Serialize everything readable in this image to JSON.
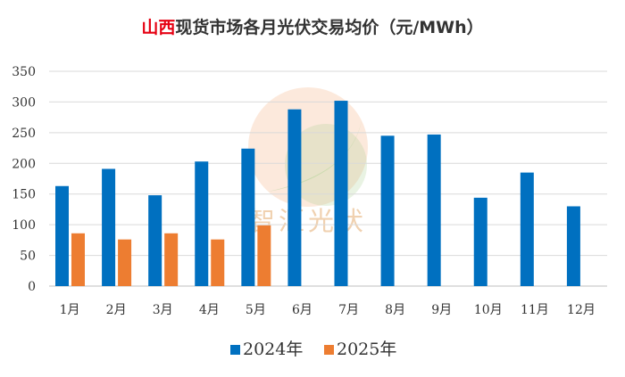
{
  "title_highlight": "山西",
  "title_rest": "现货市场各月光伏交易均价（元/MWh）",
  "watermark": {
    "text": "智汇光伏",
    "colors": {
      "orange": "#f4b183",
      "green": "#a9d18e"
    }
  },
  "chart_data": {
    "type": "bar",
    "categories": [
      "1月",
      "2月",
      "3月",
      "4月",
      "5月",
      "6月",
      "7月",
      "8月",
      "9月",
      "10月",
      "11月",
      "12月"
    ],
    "series": [
      {
        "name": "2024年",
        "color": "#0070c0",
        "values": [
          163,
          191,
          148,
          203,
          224,
          288,
          302,
          245,
          247,
          144,
          185,
          130
        ]
      },
      {
        "name": "2025年",
        "color": "#ed7d31",
        "values": [
          86,
          76,
          86,
          76,
          99,
          null,
          null,
          null,
          null,
          null,
          null,
          null
        ]
      }
    ],
    "yticks": [
      0,
      50,
      100,
      150,
      200,
      250,
      300,
      350
    ],
    "ylim": [
      0,
      350
    ],
    "grid": true,
    "legend_position": "bottom"
  }
}
